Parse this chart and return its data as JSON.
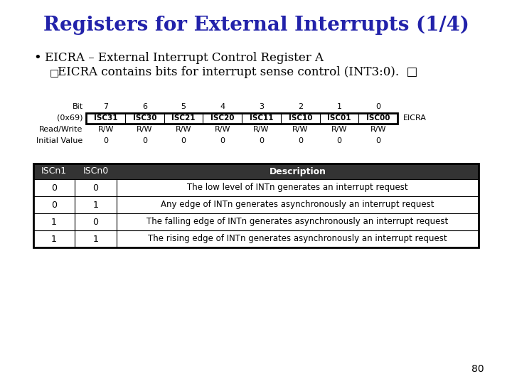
{
  "title": "Registers for External Interrupts (1/4)",
  "title_color": "#2222AA",
  "title_fontsize": 20,
  "bullet_text": "EICRA – External Interrupt Control Register A",
  "sub_bullet_text": "EICRA contains bits for interrupt sense control (INT3:0).",
  "reg_addr_label": "(0x69)",
  "reg_cells": [
    "ISC31",
    "ISC30",
    "ISC21",
    "ISC20",
    "ISC11",
    "ISC10",
    "ISC01",
    "ISC00"
  ],
  "reg_name": "EICRA",
  "reg_rw_values": [
    "R/W",
    "R/W",
    "R/W",
    "R/W",
    "R/W",
    "R/W",
    "R/W",
    "R/W"
  ],
  "reg_init_values": [
    "0",
    "0",
    "0",
    "0",
    "0",
    "0",
    "0",
    "0"
  ],
  "table_headers": [
    "ISCn1",
    "ISCn0",
    "Description"
  ],
  "table_rows": [
    [
      "0",
      "0",
      "The low level of INTn generates an interrupt request"
    ],
    [
      "0",
      "1",
      "Any edge of INTn generates asynchronously an interrupt request"
    ],
    [
      "1",
      "0",
      "The falling edge of INTn generates asynchronously an interrupt request"
    ],
    [
      "1",
      "1",
      "The rising edge of INTn generates asynchronously an interrupt request"
    ]
  ],
  "page_number": "80",
  "bg_color": "white",
  "table_header_color": "#333333",
  "table_header_text_color": "white",
  "table_border_lw": 1.5,
  "reg_cell_lw": 2.0
}
